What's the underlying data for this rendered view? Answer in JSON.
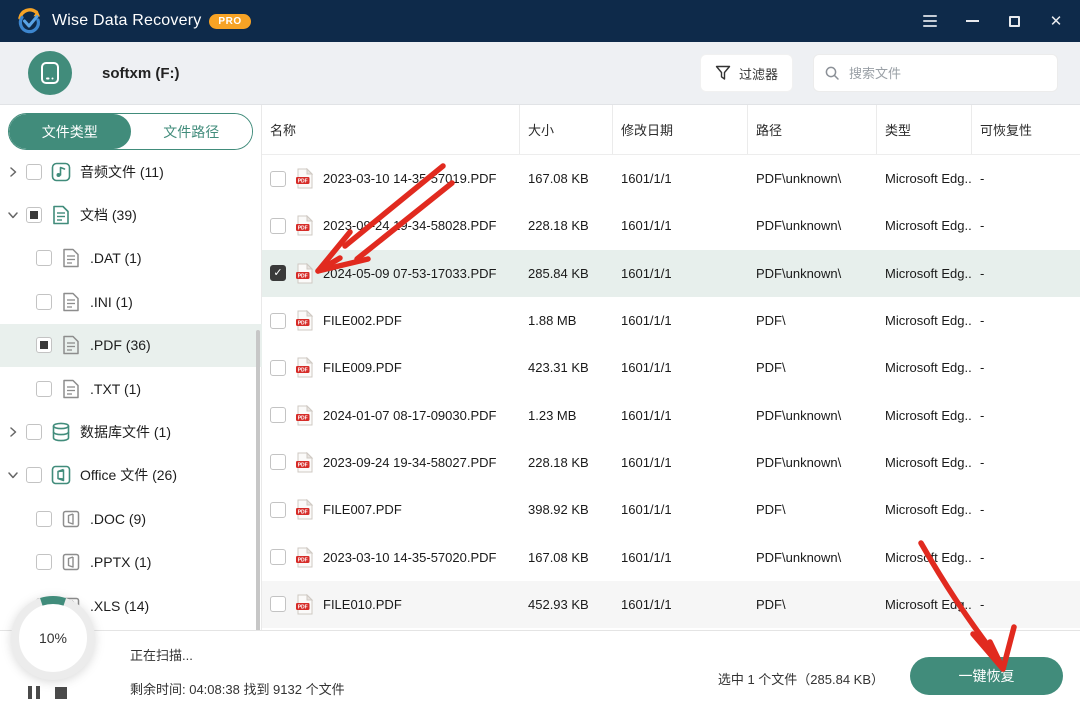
{
  "titlebar": {
    "title": "Wise Data Recovery",
    "badge": "PRO",
    "controls": {
      "menu": "menu",
      "minimize": "minimize",
      "maximize": "maximize",
      "close": "close"
    }
  },
  "drive_header": {
    "drive_name": "softxm (F:)",
    "filter_label": "过滤器",
    "search_placeholder": "搜索文件"
  },
  "sidebar": {
    "tabs": [
      {
        "label": "文件类型",
        "active": true
      },
      {
        "label": "文件路径",
        "active": false
      }
    ],
    "tree": [
      {
        "label": "音频文件 (11)",
        "icon": "audio-file-icon",
        "level": 0,
        "expander": "collapsed",
        "checkbox": "unchecked",
        "selected": false
      },
      {
        "label": "文档 (39)",
        "icon": "document-icon",
        "level": 0,
        "expander": "expanded",
        "checkbox": "partial",
        "selected": false
      },
      {
        "label": ".DAT (1)",
        "icon": "file-icon",
        "level": 1,
        "expander": "none",
        "checkbox": "unchecked",
        "selected": false
      },
      {
        "label": ".INI (1)",
        "icon": "file-icon",
        "level": 1,
        "expander": "none",
        "checkbox": "unchecked",
        "selected": false
      },
      {
        "label": ".PDF (36)",
        "icon": "file-icon",
        "level": 1,
        "expander": "none",
        "checkbox": "partial",
        "selected": true
      },
      {
        "label": ".TXT (1)",
        "icon": "file-icon",
        "level": 1,
        "expander": "none",
        "checkbox": "unchecked",
        "selected": false
      },
      {
        "label": "数据库文件 (1)",
        "icon": "database-icon",
        "level": 0,
        "expander": "collapsed",
        "checkbox": "unchecked",
        "selected": false
      },
      {
        "label": "Office 文件 (26)",
        "icon": "office-icon",
        "level": 0,
        "expander": "expanded",
        "checkbox": "unchecked",
        "selected": false
      },
      {
        "label": ".DOC (9)",
        "icon": "office-file-icon",
        "level": 1,
        "expander": "none",
        "checkbox": "unchecked",
        "selected": false
      },
      {
        "label": ".PPTX (1)",
        "icon": "office-file-icon",
        "level": 1,
        "expander": "none",
        "checkbox": "unchecked",
        "selected": false
      },
      {
        "label": ".XLS (14)",
        "icon": "office-file-icon",
        "level": 1,
        "expander": "none",
        "checkbox": "unchecked",
        "selected": false
      }
    ]
  },
  "table": {
    "columns": [
      "名称",
      "大小",
      "修改日期",
      "路径",
      "类型",
      "可恢复性"
    ],
    "rows": [
      {
        "checked": false,
        "name": "2023-03-10 14-35-57019.PDF",
        "size": "167.08 KB",
        "date": "1601/1/1",
        "path": "PDF\\unknown\\",
        "type": "Microsoft Edg...",
        "recoverability": "-",
        "selected": false,
        "shaded": false
      },
      {
        "checked": false,
        "name": "2023-09-24 19-34-58028.PDF",
        "size": "228.18 KB",
        "date": "1601/1/1",
        "path": "PDF\\unknown\\",
        "type": "Microsoft Edg...",
        "recoverability": "-",
        "selected": false,
        "shaded": false
      },
      {
        "checked": true,
        "name": "2024-05-09 07-53-17033.PDF",
        "size": "285.84 KB",
        "date": "1601/1/1",
        "path": "PDF\\unknown\\",
        "type": "Microsoft Edg...",
        "recoverability": "-",
        "selected": true,
        "shaded": false
      },
      {
        "checked": false,
        "name": "FILE002.PDF",
        "size": "1.88 MB",
        "date": "1601/1/1",
        "path": "PDF\\",
        "type": "Microsoft Edg...",
        "recoverability": "-",
        "selected": false,
        "shaded": false
      },
      {
        "checked": false,
        "name": "FILE009.PDF",
        "size": "423.31 KB",
        "date": "1601/1/1",
        "path": "PDF\\",
        "type": "Microsoft Edg...",
        "recoverability": "-",
        "selected": false,
        "shaded": false
      },
      {
        "checked": false,
        "name": "2024-01-07 08-17-09030.PDF",
        "size": "1.23 MB",
        "date": "1601/1/1",
        "path": "PDF\\unknown\\",
        "type": "Microsoft Edg...",
        "recoverability": "-",
        "selected": false,
        "shaded": false
      },
      {
        "checked": false,
        "name": "2023-09-24 19-34-58027.PDF",
        "size": "228.18 KB",
        "date": "1601/1/1",
        "path": "PDF\\unknown\\",
        "type": "Microsoft Edg...",
        "recoverability": "-",
        "selected": false,
        "shaded": false
      },
      {
        "checked": false,
        "name": "FILE007.PDF",
        "size": "398.92 KB",
        "date": "1601/1/1",
        "path": "PDF\\",
        "type": "Microsoft Edg...",
        "recoverability": "-",
        "selected": false,
        "shaded": false
      },
      {
        "checked": false,
        "name": "2023-03-10 14-35-57020.PDF",
        "size": "167.08 KB",
        "date": "1601/1/1",
        "path": "PDF\\unknown\\",
        "type": "Microsoft Edg...",
        "recoverability": "-",
        "selected": false,
        "shaded": false
      },
      {
        "checked": false,
        "name": "FILE010.PDF",
        "size": "452.93 KB",
        "date": "1601/1/1",
        "path": "PDF\\",
        "type": "Microsoft Edg...",
        "recoverability": "-",
        "selected": false,
        "shaded": true
      }
    ]
  },
  "footer": {
    "progress_percent": "10%",
    "scan_status": "正在扫描...",
    "scan_detail": "剩余时间: 04:08:38 找到 9132 个文件",
    "selection_info": "选中 1 个文件（285.84 KB）",
    "recover_label": "一键恢复"
  },
  "annotations": [
    {
      "name": "arrow-to-selected-file",
      "color": "#e12a1f"
    },
    {
      "name": "arrow-to-recover-button",
      "color": "#e12a1f"
    }
  ],
  "colors": {
    "titlebar": "#0e2a4a",
    "accent_teal": "#418c7b",
    "badge_orange": "#f7a325",
    "row_highlight": "#e7efec",
    "annotation_red": "#e12a1f",
    "pdf_red": "#d62c28"
  }
}
